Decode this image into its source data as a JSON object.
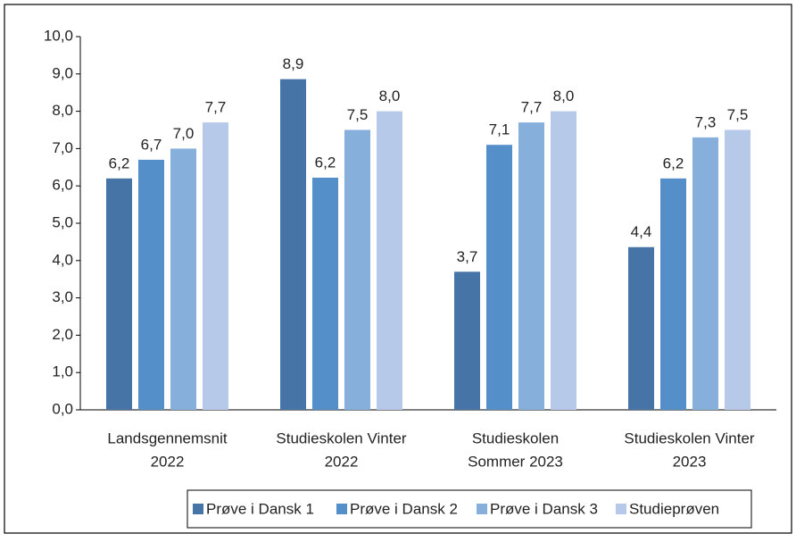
{
  "chart_data": {
    "type": "bar",
    "categories": [
      [
        "Landsgennemsnit",
        "2022"
      ],
      [
        "Studieskolen Vinter",
        "2022"
      ],
      [
        "Studieskolen",
        "Sommer 2023"
      ],
      [
        "Studieskolen Vinter",
        "2023"
      ]
    ],
    "series": [
      {
        "name": "Prøve i Dansk 1",
        "color": "#4674a6",
        "values": [
          6.2,
          8.86,
          3.7,
          4.36
        ],
        "value_labels": [
          "6,2",
          "8,9",
          "3,7",
          "4,4"
        ]
      },
      {
        "name": "Prøve i Dansk 2",
        "color": "#558fca",
        "values": [
          6.7,
          6.22,
          7.1,
          6.2
        ],
        "value_labels": [
          "6,7",
          "6,2",
          "7,1",
          "6,2"
        ]
      },
      {
        "name": "Prøve i Dansk 3",
        "color": "#86afdc",
        "values": [
          7.0,
          7.5,
          7.7,
          7.3
        ],
        "value_labels": [
          "7,0",
          "7,5",
          "7,7",
          "7,3"
        ]
      },
      {
        "name": "Studieprøven",
        "color": "#b6c9e8",
        "values": [
          7.7,
          8.0,
          8.0,
          7.5
        ],
        "value_labels": [
          "7,7",
          "8,0",
          "8,0",
          "7,5"
        ]
      }
    ],
    "ylim": [
      0,
      10
    ],
    "yticks": [
      {
        "value": 0,
        "label": "0,0"
      },
      {
        "value": 1,
        "label": "1,0"
      },
      {
        "value": 2,
        "label": "2,0"
      },
      {
        "value": 3,
        "label": "3,0"
      },
      {
        "value": 4,
        "label": "4,0"
      },
      {
        "value": 5,
        "label": "5,0"
      },
      {
        "value": 6,
        "label": "6,0"
      },
      {
        "value": 7,
        "label": "7,0"
      },
      {
        "value": 8,
        "label": "8,0"
      },
      {
        "value": 9,
        "label": "9,0"
      },
      {
        "value": 10,
        "label": "10,0"
      }
    ],
    "grid": false,
    "legend": "bottom"
  }
}
